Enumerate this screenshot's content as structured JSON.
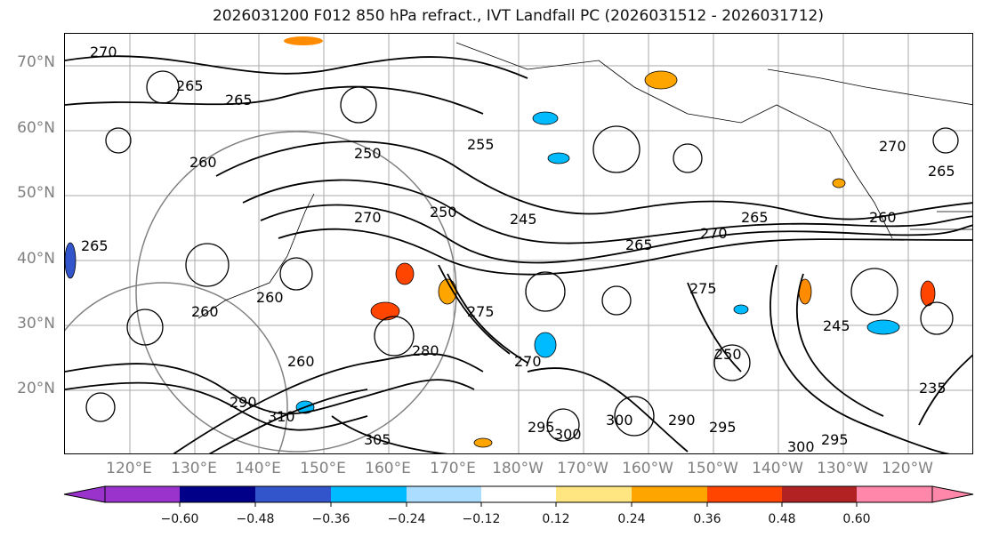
{
  "title": "2026031200 F012 850 hPa refract., IVT Landfall PC (2026031512 - 2026031712)",
  "lat_labels": [
    "70°N",
    "60°N",
    "50°N",
    "40°N",
    "30°N",
    "20°N"
  ],
  "lon_labels": [
    "120°E",
    "130°E",
    "140°E",
    "150°E",
    "160°E",
    "170°E",
    "180°W",
    "170°W",
    "160°W",
    "150°W",
    "140°W",
    "130°W",
    "120°W"
  ],
  "colorbar": {
    "colors": [
      "#9933cc",
      "#000088",
      "#3355cc",
      "#00bbff",
      "#aaddff",
      "#ffffff",
      "#ffe680",
      "#ffa500",
      "#ff4500",
      "#b22222",
      "#ff88aa"
    ],
    "tick_labels": [
      "−0.60",
      "−0.48",
      "−0.36",
      "−0.24",
      "−0.12",
      "0.12",
      "0.24",
      "0.36",
      "0.48",
      "0.60"
    ]
  },
  "contour_labels": [
    "270",
    "265",
    "265",
    "260",
    "250",
    "255",
    "270",
    "250",
    "245",
    "265",
    "270",
    "265",
    "270",
    "265",
    "260",
    "275",
    "260",
    "270",
    "280",
    "260",
    "290",
    "310",
    "305",
    "300",
    "300",
    "295",
    "290",
    "295",
    "300",
    "295",
    "245",
    "235",
    "275",
    "250",
    "260",
    "265"
  ],
  "map_features": [
    "coastlines",
    "contours-refractivity",
    "shaded-ivt-pc",
    "gridlines"
  ]
}
